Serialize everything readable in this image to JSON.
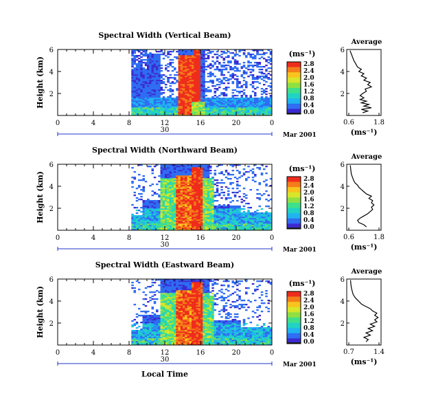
{
  "colors": {
    "scale": [
      "#1a1a1a",
      "#3b2bd0",
      "#2f6df2",
      "#1fb4f0",
      "#22d3c3",
      "#3fe08a",
      "#8fe043",
      "#d8e62a",
      "#f8c41d",
      "#f57d1a",
      "#ee2d1c"
    ],
    "missing": "#ffffff",
    "timeline": "#2233cc"
  },
  "chart_data": [
    {
      "type": "heatmap",
      "title": "Spectral Width (Vertical Beam)",
      "ylabel": "Height (km)",
      "yticks": [
        "6",
        "4",
        "2"
      ],
      "xticks": [
        "0",
        "4",
        "8",
        "12",
        "16",
        "20",
        "0"
      ],
      "xlim": [
        0,
        24
      ],
      "ylim": [
        0,
        6
      ],
      "date_day": "30",
      "date_label": "Mar 2001",
      "colorbar_unit": "(ms⁻¹)",
      "colorbar_ticks": [
        "2.8",
        "2.4",
        "2.0",
        "1.6",
        "1.2",
        "0.8",
        "0.4",
        "0.0"
      ],
      "side_profile": {
        "title": "Average",
        "xticks": [
          "0.6",
          "1.8"
        ],
        "xlim": [
          0.6,
          1.8
        ],
        "yticks": [
          "6",
          "4",
          "2"
        ],
        "xlabel": "(ms⁻¹)",
        "profile": [
          [
            1.15,
            0.25
          ],
          [
            1.35,
            0.4
          ],
          [
            1.1,
            0.55
          ],
          [
            1.5,
            0.7
          ],
          [
            1.2,
            0.85
          ],
          [
            1.4,
            1.0
          ],
          [
            1.1,
            1.15
          ],
          [
            1.3,
            1.3
          ],
          [
            1.05,
            1.45
          ],
          [
            1.2,
            1.6
          ],
          [
            1.05,
            1.8
          ],
          [
            1.15,
            2.0
          ],
          [
            1.3,
            2.2
          ],
          [
            1.25,
            2.4
          ],
          [
            1.5,
            2.6
          ],
          [
            1.35,
            2.8
          ],
          [
            1.45,
            3.0
          ],
          [
            1.2,
            3.2
          ],
          [
            1.3,
            3.4
          ],
          [
            1.1,
            3.6
          ],
          [
            1.2,
            3.8
          ],
          [
            1.0,
            4.0
          ],
          [
            1.1,
            4.2
          ],
          [
            0.95,
            4.4
          ],
          [
            0.9,
            4.6
          ],
          [
            0.85,
            4.8
          ],
          [
            0.8,
            5.0
          ],
          [
            0.75,
            5.3
          ],
          [
            0.7,
            5.6
          ],
          [
            0.65,
            5.9
          ]
        ]
      }
    },
    {
      "type": "heatmap",
      "title": "Spectral Width (Northward Beam)",
      "ylabel": "Height (km)",
      "yticks": [
        "6",
        "4",
        "2"
      ],
      "xticks": [
        "0",
        "4",
        "8",
        "12",
        "16",
        "20",
        "0"
      ],
      "xlim": [
        0,
        24
      ],
      "ylim": [
        0,
        6
      ],
      "date_day": "30",
      "date_label": "Mar 2001",
      "colorbar_unit": "(ms⁻¹)",
      "colorbar_ticks": [
        "2.8",
        "2.4",
        "2.0",
        "1.6",
        "1.2",
        "0.8",
        "0.4",
        "0.0"
      ],
      "side_profile": {
        "title": "Average",
        "xticks": [
          "0.6",
          "1.8"
        ],
        "xlim": [
          0.6,
          1.8
        ],
        "yticks": [
          "6",
          "4",
          "2"
        ],
        "xlabel": "(ms⁻¹)",
        "profile": [
          [
            1.3,
            0.3
          ],
          [
            1.2,
            0.5
          ],
          [
            1.0,
            0.7
          ],
          [
            0.95,
            0.9
          ],
          [
            1.05,
            1.1
          ],
          [
            1.2,
            1.3
          ],
          [
            1.35,
            1.5
          ],
          [
            1.45,
            1.7
          ],
          [
            1.55,
            1.9
          ],
          [
            1.5,
            2.1
          ],
          [
            1.6,
            2.3
          ],
          [
            1.5,
            2.5
          ],
          [
            1.55,
            2.7
          ],
          [
            1.4,
            2.9
          ],
          [
            1.5,
            3.1
          ],
          [
            1.3,
            3.3
          ],
          [
            1.2,
            3.5
          ],
          [
            1.1,
            3.7
          ],
          [
            1.0,
            3.9
          ],
          [
            0.95,
            4.1
          ],
          [
            0.85,
            4.3
          ],
          [
            0.8,
            4.5
          ],
          [
            0.75,
            4.8
          ],
          [
            0.7,
            5.1
          ],
          [
            0.68,
            5.5
          ],
          [
            0.66,
            5.9
          ]
        ]
      }
    },
    {
      "type": "heatmap",
      "title": "Spectral Width (Eastward Beam)",
      "ylabel": "Height (km)",
      "yticks": [
        "6",
        "4",
        "2"
      ],
      "xticks": [
        "0",
        "4",
        "8",
        "12",
        "16",
        "20",
        "0"
      ],
      "xlabel": "Local Time",
      "xlim": [
        0,
        24
      ],
      "ylim": [
        0,
        6
      ],
      "date_day": "30",
      "date_label": "Mar 2001",
      "colorbar_unit": "(ms⁻¹)",
      "colorbar_ticks": [
        "2.8",
        "2.4",
        "2.0",
        "1.6",
        "1.2",
        "0.8",
        "0.4",
        "0.0"
      ],
      "side_profile": {
        "title": "Average",
        "xticks": [
          "0.7",
          "1.4"
        ],
        "xlim": [
          0.7,
          1.4
        ],
        "yticks": [
          "6",
          "4",
          "2"
        ],
        "xlabel": "(ms⁻¹)",
        "profile": [
          [
            1.1,
            0.3
          ],
          [
            1.15,
            0.5
          ],
          [
            1.05,
            0.7
          ],
          [
            1.2,
            0.9
          ],
          [
            1.1,
            1.1
          ],
          [
            1.25,
            1.3
          ],
          [
            1.15,
            1.5
          ],
          [
            1.3,
            1.7
          ],
          [
            1.2,
            1.9
          ],
          [
            1.35,
            2.1
          ],
          [
            1.3,
            2.3
          ],
          [
            1.38,
            2.5
          ],
          [
            1.3,
            2.7
          ],
          [
            1.35,
            2.9
          ],
          [
            1.25,
            3.1
          ],
          [
            1.2,
            3.3
          ],
          [
            1.1,
            3.5
          ],
          [
            1.0,
            3.7
          ],
          [
            0.95,
            3.9
          ],
          [
            0.9,
            4.1
          ],
          [
            0.85,
            4.3
          ],
          [
            0.8,
            4.6
          ],
          [
            0.78,
            4.9
          ],
          [
            0.76,
            5.2
          ],
          [
            0.75,
            5.5
          ],
          [
            0.74,
            5.9
          ]
        ]
      }
    }
  ]
}
